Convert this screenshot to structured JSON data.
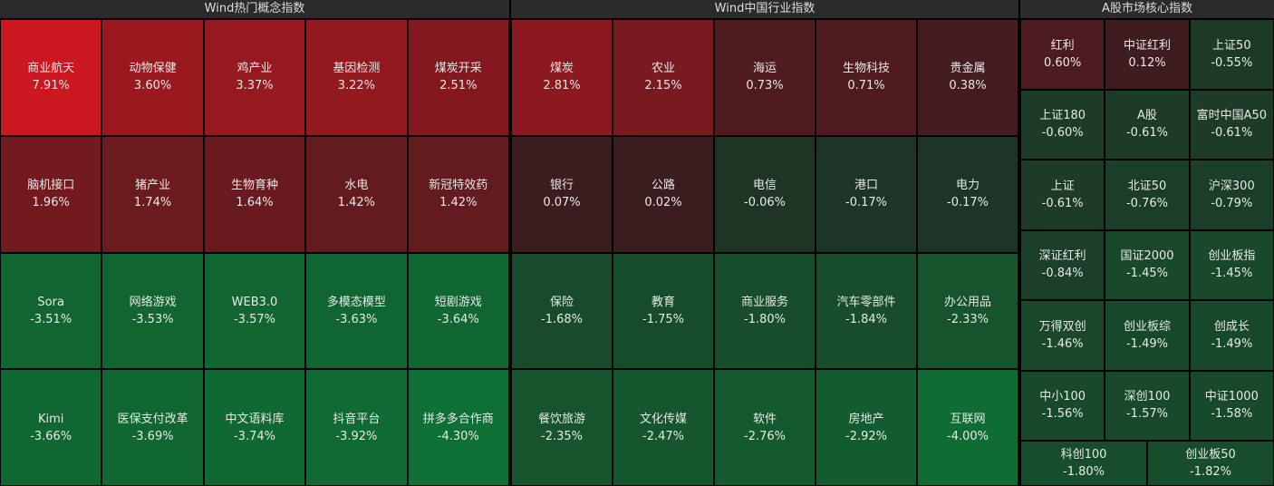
{
  "panels": [
    {
      "title": "Wind热门概念指数",
      "tiles": [
        {
          "name": "商业航天",
          "change": "7.91%"
        },
        {
          "name": "动物保健",
          "change": "3.60%"
        },
        {
          "name": "鸡产业",
          "change": "3.37%"
        },
        {
          "name": "基因检测",
          "change": "3.22%"
        },
        {
          "name": "煤炭开采",
          "change": "2.51%"
        },
        {
          "name": "脑机接口",
          "change": "1.96%"
        },
        {
          "name": "猪产业",
          "change": "1.74%"
        },
        {
          "name": "生物育种",
          "change": "1.64%"
        },
        {
          "name": "水电",
          "change": "1.42%"
        },
        {
          "name": "新冠特效药",
          "change": "1.42%"
        },
        {
          "name": "Sora",
          "change": "-3.51%"
        },
        {
          "name": "网络游戏",
          "change": "-3.53%"
        },
        {
          "name": "WEB3.0",
          "change": "-3.57%"
        },
        {
          "name": "多模态模型",
          "change": "-3.63%"
        },
        {
          "name": "短剧游戏",
          "change": "-3.64%"
        },
        {
          "name": "Kimi",
          "change": "-3.66%"
        },
        {
          "name": "医保支付改革",
          "change": "-3.69%"
        },
        {
          "name": "中文语料库",
          "change": "-3.74%"
        },
        {
          "name": "抖音平台",
          "change": "-3.92%"
        },
        {
          "name": "拼多多合作商",
          "change": "-4.30%"
        }
      ]
    },
    {
      "title": "Wind中国行业指数",
      "tiles": [
        {
          "name": "煤炭",
          "change": "2.81%"
        },
        {
          "name": "农业",
          "change": "2.15%"
        },
        {
          "name": "海运",
          "change": "0.73%"
        },
        {
          "name": "生物科技",
          "change": "0.71%"
        },
        {
          "name": "贵金属",
          "change": "0.38%"
        },
        {
          "name": "银行",
          "change": "0.07%"
        },
        {
          "name": "公路",
          "change": "0.02%"
        },
        {
          "name": "电信",
          "change": "-0.06%"
        },
        {
          "name": "港口",
          "change": "-0.17%"
        },
        {
          "name": "电力",
          "change": "-0.17%"
        },
        {
          "name": "保险",
          "change": "-1.68%"
        },
        {
          "name": "教育",
          "change": "-1.75%"
        },
        {
          "name": "商业服务",
          "change": "-1.80%"
        },
        {
          "name": "汽车零部件",
          "change": "-1.84%"
        },
        {
          "name": "办公用品",
          "change": "-2.33%"
        },
        {
          "name": "餐饮旅游",
          "change": "-2.35%"
        },
        {
          "name": "文化传媒",
          "change": "-2.47%"
        },
        {
          "name": "软件",
          "change": "-2.76%"
        },
        {
          "name": "房地产",
          "change": "-2.92%"
        },
        {
          "name": "互联网",
          "change": "-4.00%"
        }
      ]
    },
    {
      "title": "A股市场核心指数",
      "tiles": [
        {
          "name": "红利",
          "change": "0.60%"
        },
        {
          "name": "中证红利",
          "change": "0.12%"
        },
        {
          "name": "上证50",
          "change": "-0.55%"
        },
        {
          "name": "上证180",
          "change": "-0.60%"
        },
        {
          "name": "A股",
          "change": "-0.61%"
        },
        {
          "name": "富时中国A50",
          "change": "-0.61%"
        },
        {
          "name": "上证",
          "change": "-0.61%"
        },
        {
          "name": "北证50",
          "change": "-0.76%"
        },
        {
          "name": "沪深300",
          "change": "-0.79%"
        },
        {
          "name": "深证红利",
          "change": "-0.84%"
        },
        {
          "name": "国证2000",
          "change": "-1.45%"
        },
        {
          "name": "创业板指",
          "change": "-1.45%"
        },
        {
          "name": "万得双创",
          "change": "-1.46%"
        },
        {
          "name": "创业板综",
          "change": "-1.49%"
        },
        {
          "name": "创成长",
          "change": "-1.49%"
        },
        {
          "name": "中小100",
          "change": "-1.56%"
        },
        {
          "name": "深创100",
          "change": "-1.57%"
        },
        {
          "name": "中证1000",
          "change": "-1.58%"
        },
        {
          "name": "科创100",
          "change": "-1.80%"
        },
        {
          "name": "创业板50",
          "change": "-1.82%"
        }
      ]
    }
  ]
}
